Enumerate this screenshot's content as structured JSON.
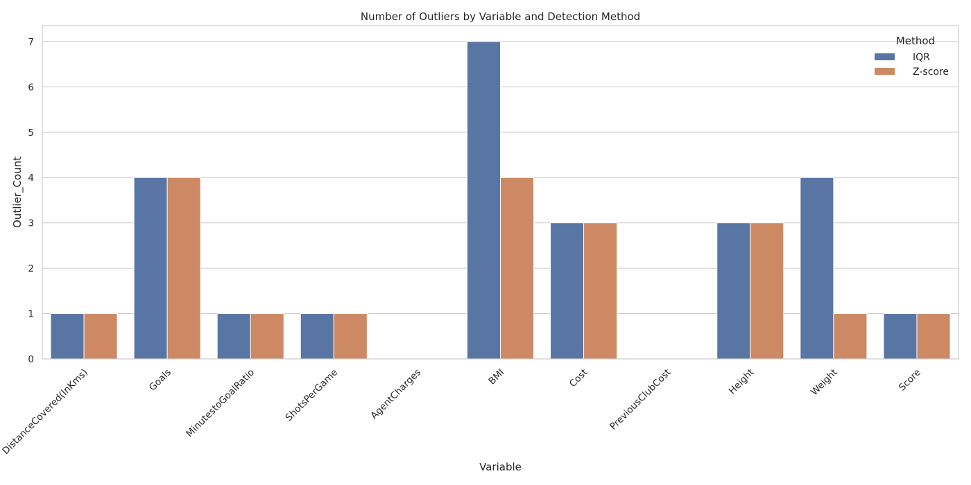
{
  "chart_data": {
    "type": "bar",
    "title": "Number of Outliers by Variable and Detection Method",
    "xlabel": "Variable",
    "ylabel": "Outlier_Count",
    "categories": [
      "DistanceCovered(InKms)",
      "Goals",
      "MinutestoGoalRatio",
      "ShotsPerGame",
      "AgentCharges",
      "BMI",
      "Cost",
      "PreviousClubCost",
      "Height",
      "Weight",
      "Score"
    ],
    "series": [
      {
        "name": "IQR",
        "color": "#5875a4",
        "values": [
          1,
          4,
          1,
          1,
          0,
          7,
          3,
          0,
          3,
          4,
          1
        ]
      },
      {
        "name": "Z-score",
        "color": "#cc8963",
        "values": [
          1,
          4,
          1,
          1,
          0,
          4,
          3,
          0,
          3,
          1,
          1
        ]
      }
    ],
    "ylim": [
      0,
      7.35
    ],
    "yticks": [
      0,
      1,
      2,
      3,
      4,
      5,
      6,
      7
    ],
    "grid": true,
    "legend": {
      "title": "Method",
      "position": "top-right"
    }
  }
}
